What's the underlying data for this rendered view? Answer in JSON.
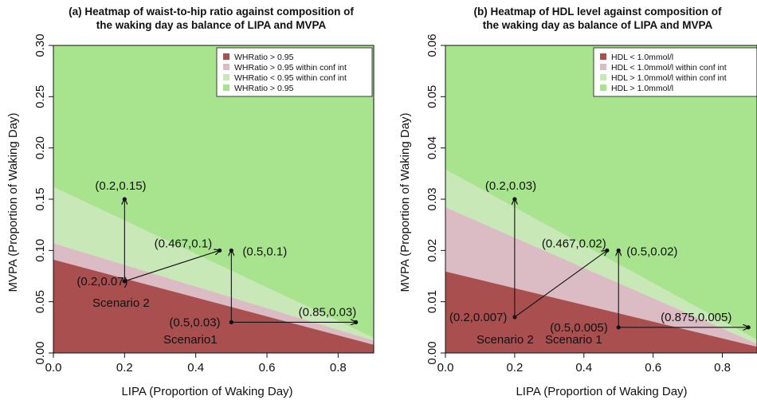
{
  "chart_data": [
    {
      "type": "heatmap",
      "title_line1": "(a) Heatmap of waist-to-hip ratio against composition of",
      "title_line2": "the waking day as balance of LIPA and MVPA",
      "xlabel": "LIPA  (Proportion of Waking Day)",
      "ylabel": "MVPA  (Proportion of Waking Day)",
      "xlim": [
        0,
        0.9
      ],
      "ylim": [
        0,
        0.3
      ],
      "xticks": [
        "0.0",
        "0.2",
        "0.4",
        "0.6",
        "0.8"
      ],
      "yticks": [
        "0.00",
        "0.05",
        "0.10",
        "0.15",
        "0.20",
        "0.25",
        "0.30"
      ],
      "regions": [
        {
          "label": "WHRatio > 0.95",
          "color": "#a94f4f",
          "upper_boundary": {
            "y_at_x0": 0.091,
            "y_at_xmax": 0.008
          }
        },
        {
          "label": "WHRatio > 0.95 within conf int",
          "color": "#dcbcc4",
          "upper_boundary": {
            "y_at_x0": 0.107,
            "y_at_xmax": 0.012
          }
        },
        {
          "label": "WHRatio < 0.95 within conf int",
          "color": "#c9e8b8",
          "upper_boundary": {
            "y_at_x0": 0.162,
            "y_at_xmax": 0.015
          }
        },
        {
          "label": "WHRatio > 0.95",
          "color": "#a8e48e"
        }
      ],
      "points": [
        {
          "label": "(0.2,0.15)",
          "x": 0.2,
          "y": 0.15
        },
        {
          "label": "(0.467,0.1)",
          "x": 0.467,
          "y": 0.1
        },
        {
          "label": "(0.5,0.1)",
          "x": 0.5,
          "y": 0.1
        },
        {
          "label": "(0.2,0.07)",
          "x": 0.2,
          "y": 0.07
        },
        {
          "label": "(0.5,0.03)",
          "x": 0.5,
          "y": 0.03
        },
        {
          "label": "(0.85,0.03)",
          "x": 0.85,
          "y": 0.03
        }
      ],
      "arrows": [
        {
          "from": [
            0.2,
            0.07
          ],
          "to": [
            0.2,
            0.15
          ]
        },
        {
          "from": [
            0.2,
            0.07
          ],
          "to": [
            0.467,
            0.1
          ]
        },
        {
          "from": [
            0.5,
            0.03
          ],
          "to": [
            0.5,
            0.1
          ]
        },
        {
          "from": [
            0.5,
            0.03
          ],
          "to": [
            0.85,
            0.03
          ]
        }
      ],
      "scenarios": [
        {
          "label": "Scenario 2"
        },
        {
          "label": "Scenario1"
        }
      ]
    },
    {
      "type": "heatmap",
      "title_line1": "(b) Heatmap of HDL level against composition of",
      "title_line2": "the waking day as balance of LIPA and MVPA",
      "xlabel": "LIPA  (Proportion of Waking Day)",
      "ylabel": "MVPA  (Proportion of Waking Day)",
      "xlim": [
        0,
        0.9
      ],
      "ylim": [
        0,
        0.06
      ],
      "xticks": [
        "0.0",
        "0.2",
        "0.4",
        "0.6",
        "0.8"
      ],
      "yticks": [
        "0.00",
        "0.01",
        "0.02",
        "0.03",
        "0.04",
        "0.05",
        "0.06"
      ],
      "regions": [
        {
          "label": "HDL < 1.0mmol/l",
          "color": "#a94f4f",
          "upper_boundary": {
            "y_at_x0": 0.0159,
            "y_at_xmax": 0.0012
          }
        },
        {
          "label": "HDL < 1.0mmol/l within conf int",
          "color": "#dcbcc4",
          "upper_boundary": {
            "y_at_x0": 0.0284,
            "y_at_xmax": 0.0018
          }
        },
        {
          "label": "HDL > 1.0mmol/l within conf int",
          "color": "#c9e8b8",
          "upper_boundary": {
            "y_at_x0": 0.0358,
            "y_at_xmax": 0.0026
          }
        },
        {
          "label": "HDL > 1.0mmol/l",
          "color": "#a8e48e"
        }
      ],
      "points": [
        {
          "label": "(0.2,0.03)",
          "x": 0.2,
          "y": 0.03
        },
        {
          "label": "(0.467,0.02)",
          "x": 0.467,
          "y": 0.02
        },
        {
          "label": "(0.5,0.02)",
          "x": 0.5,
          "y": 0.02
        },
        {
          "label": "(0.2,0.007)",
          "x": 0.2,
          "y": 0.007
        },
        {
          "label": "(0.5,0.005)",
          "x": 0.5,
          "y": 0.005
        },
        {
          "label": "(0.875,0.005)",
          "x": 0.875,
          "y": 0.005
        }
      ],
      "arrows": [
        {
          "from": [
            0.2,
            0.007
          ],
          "to": [
            0.2,
            0.03
          ]
        },
        {
          "from": [
            0.2,
            0.007
          ],
          "to": [
            0.467,
            0.02
          ]
        },
        {
          "from": [
            0.5,
            0.005
          ],
          "to": [
            0.5,
            0.02
          ]
        },
        {
          "from": [
            0.5,
            0.005
          ],
          "to": [
            0.875,
            0.005
          ]
        }
      ],
      "scenarios": [
        {
          "label": "Scenario 2"
        },
        {
          "label": "Scenario 1"
        }
      ]
    }
  ]
}
